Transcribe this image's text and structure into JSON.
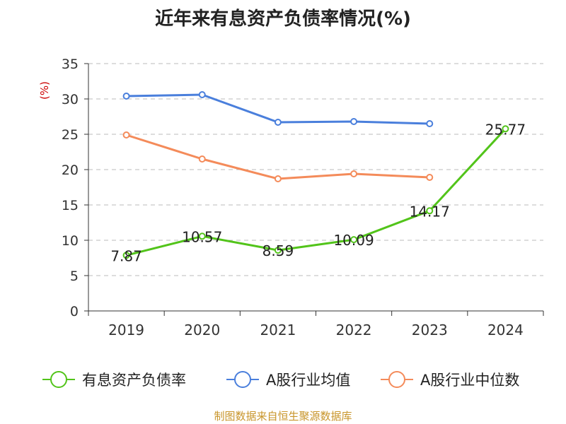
{
  "title": "近年来有息资产负债率情况(%)",
  "source": "制图数据来自恒生聚源数据库",
  "chart_data": {
    "type": "line",
    "title": "近年来有息资产负债率情况(%)",
    "ylabel": "(%)",
    "xlabel": "",
    "categories": [
      "2019",
      "2020",
      "2021",
      "2022",
      "2023",
      "2024"
    ],
    "ylim": [
      0,
      35
    ],
    "yticks": [
      0,
      5,
      10,
      15,
      20,
      25,
      30,
      35
    ],
    "grid": "horizontal dashed",
    "legend": "bottom",
    "series": [
      {
        "name": "有息资产负债率",
        "color": "#52c41a",
        "values": [
          7.87,
          10.57,
          8.59,
          10.09,
          14.17,
          25.77
        ],
        "labels": [
          "7.87",
          "10.57",
          "8.59",
          "10.09",
          "14.17",
          "25.77"
        ]
      },
      {
        "name": "A股行业均值",
        "color": "#4a7fdc",
        "values": [
          30.4,
          30.6,
          26.7,
          26.8,
          26.5,
          null
        ]
      },
      {
        "name": "A股行业中位数",
        "color": "#f48b5a",
        "values": [
          24.9,
          21.5,
          18.7,
          19.4,
          18.9,
          null
        ]
      }
    ]
  }
}
